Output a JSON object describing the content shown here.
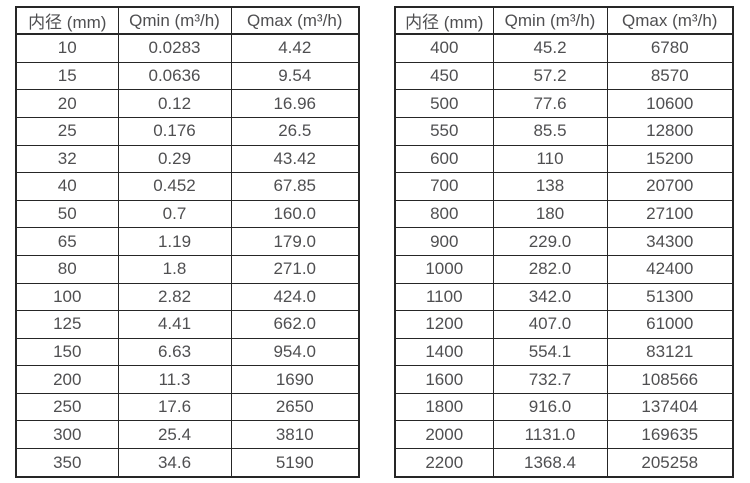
{
  "page": {
    "background": "#ffffff",
    "text_color": "#4f4f51",
    "border_color": "#262626"
  },
  "tables": [
    {
      "name": "flow-table-small-diameters",
      "headers": [
        "内径 (mm)",
        "Qmin (m³/h)",
        "Qmax (m³/h)"
      ],
      "rows": [
        [
          "10",
          "0.0283",
          "4.42"
        ],
        [
          "15",
          "0.0636",
          "9.54"
        ],
        [
          "20",
          "0.12",
          "16.96"
        ],
        [
          "25",
          "0.176",
          "26.5"
        ],
        [
          "32",
          "0.29",
          "43.42"
        ],
        [
          "40",
          "0.452",
          "67.85"
        ],
        [
          "50",
          "0.7",
          "160.0"
        ],
        [
          "65",
          "1.19",
          "179.0"
        ],
        [
          "80",
          "1.8",
          "271.0"
        ],
        [
          "100",
          "2.82",
          "424.0"
        ],
        [
          "125",
          "4.41",
          "662.0"
        ],
        [
          "150",
          "6.63",
          "954.0"
        ],
        [
          "200",
          "11.3",
          "1690"
        ],
        [
          "250",
          "17.6",
          "2650"
        ],
        [
          "300",
          "25.4",
          "3810"
        ],
        [
          "350",
          "34.6",
          "5190"
        ]
      ]
    },
    {
      "name": "flow-table-large-diameters",
      "headers": [
        "内径 (mm)",
        "Qmin (m³/h)",
        "Qmax (m³/h)"
      ],
      "rows": [
        [
          "400",
          "45.2",
          "6780"
        ],
        [
          "450",
          "57.2",
          "8570"
        ],
        [
          "500",
          "77.6",
          "10600"
        ],
        [
          "550",
          "85.5",
          "12800"
        ],
        [
          "600",
          "110",
          "15200"
        ],
        [
          "700",
          "138",
          "20700"
        ],
        [
          "800",
          "180",
          "27100"
        ],
        [
          "900",
          "229.0",
          "34300"
        ],
        [
          "1000",
          "282.0",
          "42400"
        ],
        [
          "1100",
          "342.0",
          "51300"
        ],
        [
          "1200",
          "407.0",
          "61000"
        ],
        [
          "1400",
          "554.1",
          "83121"
        ],
        [
          "1600",
          "732.7",
          "108566"
        ],
        [
          "1800",
          "916.0",
          "137404"
        ],
        [
          "2000",
          "1131.0",
          "169635"
        ],
        [
          "2200",
          "1368.4",
          "205258"
        ]
      ]
    }
  ]
}
